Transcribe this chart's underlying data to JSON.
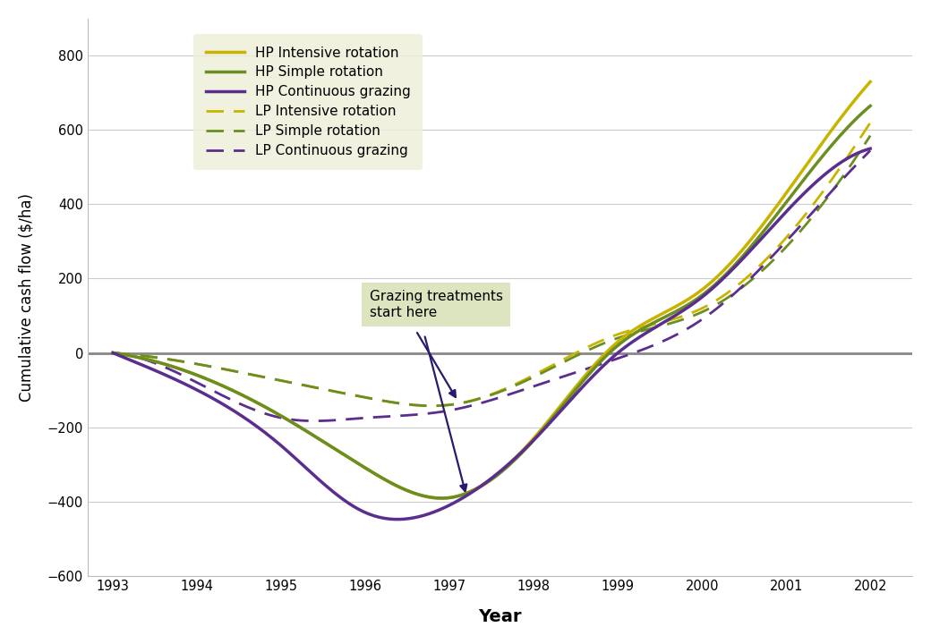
{
  "years": [
    1993,
    1994,
    1995,
    1996,
    1997,
    1998,
    1999,
    2000,
    2001,
    2002
  ],
  "hp_intensive": [
    0,
    -60,
    -170,
    -310,
    -390,
    -230,
    30,
    170,
    430,
    730
  ],
  "hp_simple": [
    0,
    -60,
    -170,
    -310,
    -390,
    -235,
    20,
    155,
    405,
    665
  ],
  "hp_continuous": [
    0,
    -100,
    -250,
    -430,
    -410,
    -235,
    0,
    150,
    380,
    550
  ],
  "lp_intensive": [
    0,
    -30,
    -75,
    -120,
    -140,
    -60,
    50,
    120,
    310,
    620
  ],
  "lp_simple": [
    0,
    -30,
    -75,
    -120,
    -140,
    -65,
    40,
    110,
    285,
    585
  ],
  "lp_continuous": [
    0,
    -80,
    -175,
    -175,
    -155,
    -90,
    -15,
    90,
    300,
    545
  ],
  "colors": {
    "hp_intensive": "#C8B400",
    "hp_simple": "#6B8E23",
    "hp_continuous": "#5B2D8E",
    "lp_intensive": "#C8B400",
    "lp_simple": "#6B8E23",
    "lp_continuous": "#5B2D8E"
  },
  "ylabel": "Cumulative cash flow ($/ha)",
  "xlabel": "Year",
  "ylim": [
    -600,
    900
  ],
  "yticks": [
    -600,
    -400,
    -200,
    0,
    200,
    400,
    600,
    800
  ],
  "xlim": [
    1992.7,
    2002.5
  ],
  "xticks": [
    1993,
    1994,
    1995,
    1996,
    1997,
    1998,
    1999,
    2000,
    2001,
    2002
  ],
  "legend_bg": "#EDEFD8",
  "annotation_bg": "#DDE5C0",
  "annotation_text": "Grazing treatments\nstart here",
  "zero_line_color": "#888888"
}
